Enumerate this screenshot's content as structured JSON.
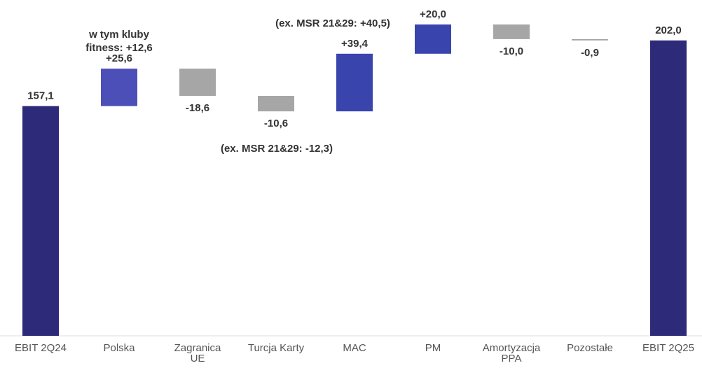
{
  "chart_data": {
    "type": "waterfall",
    "categories": [
      "EBIT 2Q24",
      "Polska",
      "Zagranica\nUE",
      "Turcja Karty",
      "MAC",
      "PM",
      "Amortyzacja\nPPA",
      "Pozostałe",
      "EBIT 2Q25"
    ],
    "measure": [
      "total",
      "relative",
      "relative",
      "relative",
      "relative",
      "relative",
      "relative",
      "relative",
      "total"
    ],
    "values": [
      157.1,
      25.6,
      -18.6,
      -10.6,
      39.4,
      20.0,
      -10.0,
      -0.9,
      202.0
    ],
    "value_labels": [
      "157,1",
      "+25,6",
      "-18,6",
      "-10,6",
      "+39,4",
      "+20,0",
      "-10,0",
      "-0,9",
      "202,0"
    ],
    "colors": [
      "#2e2a7a",
      "#4d4fb8",
      "#a6a6a6",
      "#a6a6a6",
      "#3a44ad",
      "#3a44ad",
      "#a6a6a6",
      "#a6a6a6",
      "#2e2a7a"
    ],
    "annotations": [
      "w tym kluby\nfitness: +12,6",
      "(ex. MSR 21&29: +40,5)",
      "(ex. MSR 21&29: -12,3)"
    ]
  }
}
